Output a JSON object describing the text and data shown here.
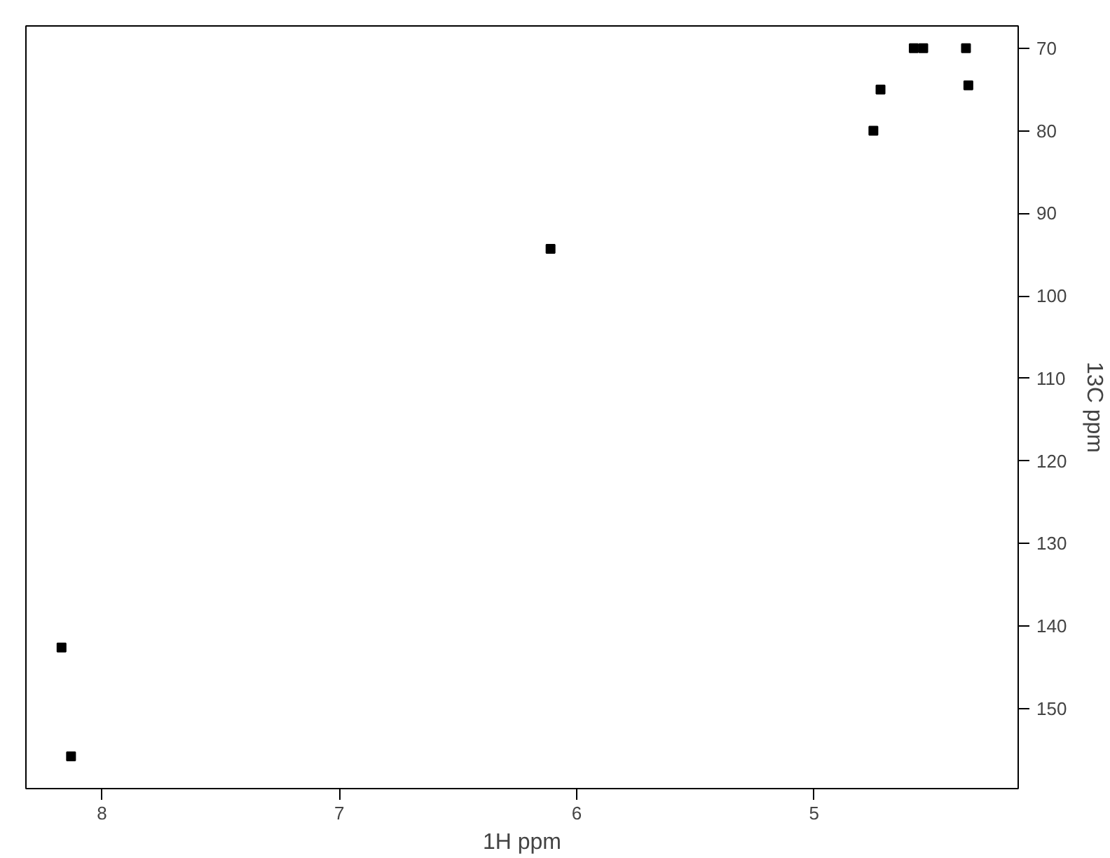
{
  "chart_data": {
    "type": "scatter",
    "xlabel": "1H ppm",
    "ylabel": "13C ppm",
    "x": [
      4.58,
      4.54,
      4.36,
      4.72,
      4.35,
      4.75,
      6.11,
      8.17,
      8.13
    ],
    "series": [
      {
        "color": "#000000",
        "values": [
          70.0,
          70.0,
          70.0,
          75.0,
          74.5,
          80.0,
          94.3,
          142.6,
          155.8
        ]
      }
    ],
    "xlim": [
      8.32,
      4.14
    ],
    "ylim": [
      159.7,
      67.3
    ],
    "xticks": [
      8,
      7,
      6,
      5
    ],
    "yticks": [
      70,
      80,
      90,
      100,
      110,
      120,
      130,
      140,
      150
    ],
    "marker": "square",
    "grid": false
  }
}
